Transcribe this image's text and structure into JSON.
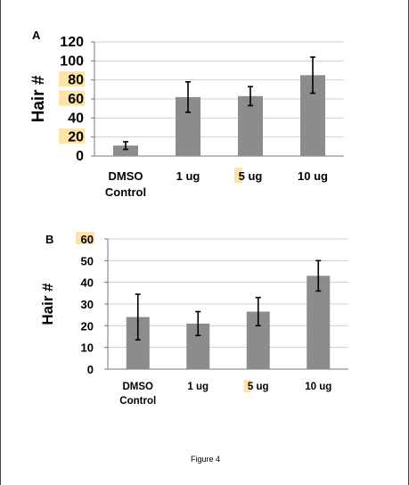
{
  "chart_data": [
    {
      "type": "bar",
      "panel_label": "A",
      "ylabel": "Hair #",
      "categories": [
        "DMSO Control",
        "1 ug",
        "5 ug",
        "10 ug"
      ],
      "values": [
        11,
        62,
        63,
        85
      ],
      "error": [
        4,
        16,
        10,
        19
      ],
      "ylim": [
        0,
        120
      ],
      "yticks": [
        0,
        20,
        40,
        60,
        80,
        100,
        120
      ],
      "highlighted_yticks": [
        20,
        60,
        80
      ],
      "grid": true,
      "bar_color": "#8c8c8c",
      "highlight_color": "#fde3a7"
    },
    {
      "type": "bar",
      "panel_label": "B",
      "ylabel": "Hair #",
      "categories": [
        "DMSO Control",
        "1 ug",
        "5 ug",
        "10 ug"
      ],
      "values": [
        24,
        21,
        26.5,
        43
      ],
      "error": [
        10.5,
        5.5,
        6.5,
        7
      ],
      "ylim": [
        0,
        60
      ],
      "yticks": [
        0,
        10,
        20,
        30,
        40,
        50,
        60
      ],
      "highlighted_yticks": [
        60
      ],
      "grid": true,
      "bar_color": "#8c8c8c",
      "highlight_color": "#fde3a7"
    }
  ],
  "caption": "Figure 4"
}
